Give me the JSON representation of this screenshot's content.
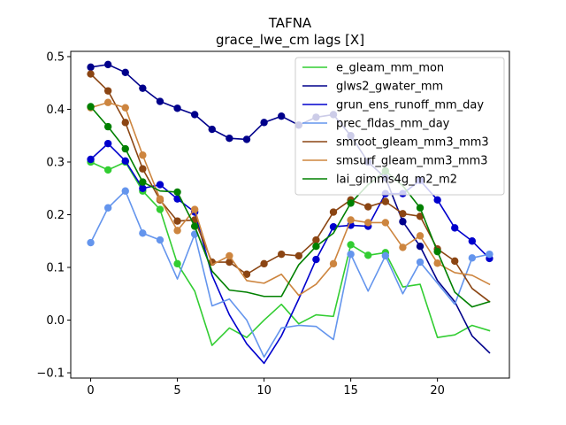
{
  "chart_data": {
    "type": "line",
    "title": "TAFNA",
    "subtitle": "grace_lwe_cm lags [X]",
    "xlabel": "",
    "ylabel": "",
    "xlim": [
      -1.15,
      24.15
    ],
    "ylim": [
      -0.11,
      0.51
    ],
    "xticks": [
      0,
      5,
      10,
      15,
      20
    ],
    "yticks": [
      -0.1,
      0.0,
      0.1,
      0.2,
      0.3,
      0.4,
      0.5
    ],
    "ytick_labels": [
      "−0.1",
      "0.0",
      "0.1",
      "0.2",
      "0.3",
      "0.4",
      "0.5"
    ],
    "legend_position": "top-right",
    "grid": false,
    "x": [
      0,
      1,
      2,
      3,
      4,
      5,
      6,
      7,
      8,
      9,
      10,
      11,
      12,
      13,
      14,
      15,
      16,
      17,
      18,
      19,
      20,
      21,
      22,
      23
    ],
    "series": [
      {
        "name": "e_gleam_mm_mon",
        "color": "#32cd32",
        "values": [
          0.3,
          0.285,
          0.3,
          0.245,
          0.21,
          0.107,
          0.055,
          -0.048,
          -0.015,
          -0.033,
          0.0,
          0.03,
          -0.007,
          0.01,
          0.007,
          0.143,
          0.123,
          0.128,
          0.063,
          0.068,
          -0.033,
          -0.028,
          -0.01,
          -0.02
        ],
        "markers": [
          0,
          1,
          2,
          3,
          4,
          5,
          15,
          16,
          17
        ]
      },
      {
        "name": "glws2_gwater_mm",
        "color": "#00008b",
        "values": [
          0.48,
          0.485,
          0.47,
          0.44,
          0.415,
          0.402,
          0.39,
          0.362,
          0.345,
          0.343,
          0.375,
          0.387,
          0.37,
          0.385,
          0.39,
          0.35,
          0.3,
          0.27,
          0.187,
          0.14,
          0.075,
          0.035,
          -0.03,
          -0.062
        ],
        "markers": [
          0,
          1,
          2,
          3,
          4,
          5,
          6,
          7,
          8,
          9,
          10,
          11,
          12,
          13,
          14,
          15,
          16,
          17,
          18,
          19
        ]
      },
      {
        "name": "grun_ens_runoff_mm_day",
        "color": "#0000cd",
        "values": [
          0.305,
          0.335,
          0.302,
          0.25,
          0.257,
          0.23,
          0.205,
          0.085,
          0.01,
          -0.045,
          -0.082,
          -0.03,
          0.04,
          0.115,
          0.177,
          0.18,
          0.178,
          0.24,
          0.24,
          0.265,
          0.228,
          0.175,
          0.15,
          0.117
        ],
        "markers": [
          0,
          1,
          2,
          3,
          4,
          5,
          6,
          13,
          14,
          15,
          16,
          17,
          18,
          19,
          20,
          21,
          22,
          23
        ]
      },
      {
        "name": "prec_fldas_mm_day",
        "color": "#6495ed",
        "values": [
          0.147,
          0.213,
          0.245,
          0.165,
          0.152,
          0.078,
          0.163,
          0.027,
          0.04,
          0.0,
          -0.07,
          -0.015,
          -0.01,
          -0.012,
          -0.037,
          0.125,
          0.055,
          0.122,
          0.05,
          0.11,
          0.07,
          0.03,
          0.118,
          0.125
        ],
        "markers": [
          0,
          1,
          2,
          3,
          4,
          6,
          15,
          17,
          19,
          22,
          23
        ]
      },
      {
        "name": "smroot_gleam_mm3_mm3",
        "color": "#8b4513",
        "values": [
          0.467,
          0.435,
          0.375,
          0.287,
          0.228,
          0.188,
          0.19,
          0.11,
          0.11,
          0.087,
          0.107,
          0.125,
          0.122,
          0.152,
          0.205,
          0.228,
          0.215,
          0.225,
          0.202,
          0.197,
          0.135,
          0.112,
          0.06,
          0.035
        ],
        "markers": [
          0,
          1,
          2,
          3,
          4,
          5,
          6,
          7,
          8,
          9,
          10,
          11,
          12,
          13,
          14,
          15,
          16,
          17,
          18,
          19,
          20,
          21
        ]
      },
      {
        "name": "smsurf_gleam_mm3_mm3",
        "color": "#cd853f",
        "values": [
          0.403,
          0.413,
          0.403,
          0.313,
          0.23,
          0.17,
          0.21,
          0.105,
          0.122,
          0.075,
          0.07,
          0.087,
          0.047,
          0.068,
          0.107,
          0.19,
          0.185,
          0.185,
          0.138,
          0.16,
          0.108,
          0.09,
          0.085,
          0.068
        ],
        "markers": [
          0,
          1,
          2,
          3,
          4,
          5,
          6,
          8,
          14,
          15,
          16,
          17,
          18,
          19,
          20
        ]
      },
      {
        "name": "lai_gimms4g_m2_m2",
        "color": "#008000",
        "values": [
          0.405,
          0.367,
          0.325,
          0.262,
          0.245,
          0.243,
          0.178,
          0.093,
          0.057,
          0.053,
          0.045,
          0.045,
          0.105,
          0.14,
          0.165,
          0.222,
          0.257,
          0.283,
          0.255,
          0.213,
          0.13,
          0.053,
          0.025,
          0.035
        ],
        "markers": [
          0,
          1,
          2,
          3,
          5,
          6,
          13,
          15,
          17,
          19,
          20
        ]
      }
    ]
  }
}
